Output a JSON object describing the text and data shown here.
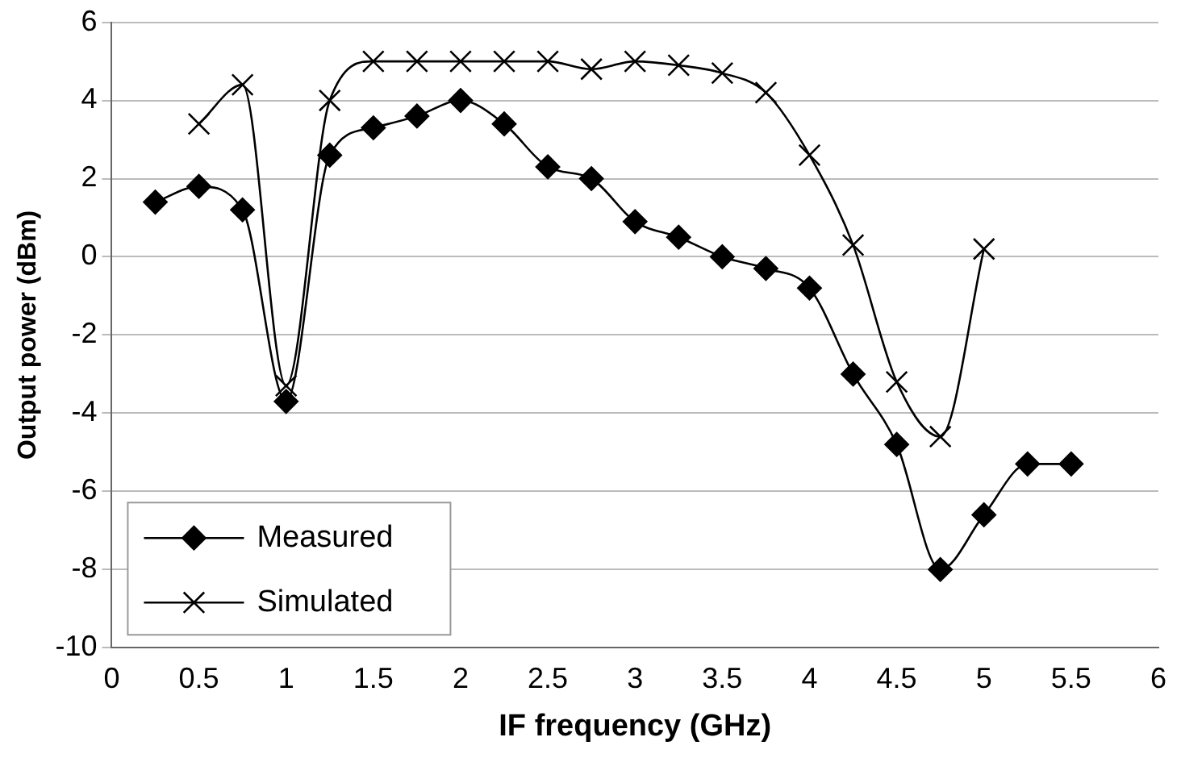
{
  "chart_data": {
    "type": "line",
    "xlabel": "IF frequency (GHz)",
    "ylabel": "Output power (dBm)",
    "xlim": [
      0,
      6
    ],
    "xticks": [
      0,
      0.5,
      1,
      1.5,
      2,
      2.5,
      3,
      3.5,
      4,
      4.5,
      5,
      5.5,
      6
    ],
    "ylim": [
      -10,
      6
    ],
    "yticks": [
      -10,
      -8,
      -6,
      -4,
      -2,
      0,
      2,
      4,
      6
    ],
    "grid": "y",
    "legend": "bottom left",
    "series": [
      {
        "name": "Measured",
        "color": "#000000",
        "marker": "diamond",
        "x": [
          0.25,
          0.5,
          0.75,
          1,
          1.25,
          1.5,
          1.75,
          2,
          2.25,
          2.5,
          2.75,
          3,
          3.25,
          3.5,
          3.75,
          4,
          4.25,
          4.5,
          4.75,
          5,
          5.25,
          5.5
        ],
        "values": [
          1.4,
          1.8,
          1.2,
          -3.7,
          2.6,
          3.3,
          3.6,
          4.0,
          3.4,
          2.3,
          2.0,
          0.9,
          0.5,
          0.0,
          -0.3,
          -0.8,
          -3.0,
          -4.8,
          -8.0,
          -6.6,
          -5.3,
          -5.3
        ]
      },
      {
        "name": "Simulated",
        "color": "#000000",
        "marker": "cross",
        "x": [
          0.5,
          0.75,
          1,
          1.25,
          1.5,
          1.75,
          2,
          2.25,
          2.5,
          2.75,
          3,
          3.25,
          3.5,
          3.75,
          4,
          4.25,
          4.5,
          4.75,
          5
        ],
        "values": [
          3.4,
          4.4,
          -3.3,
          4.0,
          5.0,
          5.0,
          5.0,
          5.0,
          5.0,
          4.8,
          5.0,
          4.9,
          4.7,
          4.2,
          2.6,
          0.3,
          -3.2,
          -4.6,
          0.2
        ]
      }
    ]
  }
}
